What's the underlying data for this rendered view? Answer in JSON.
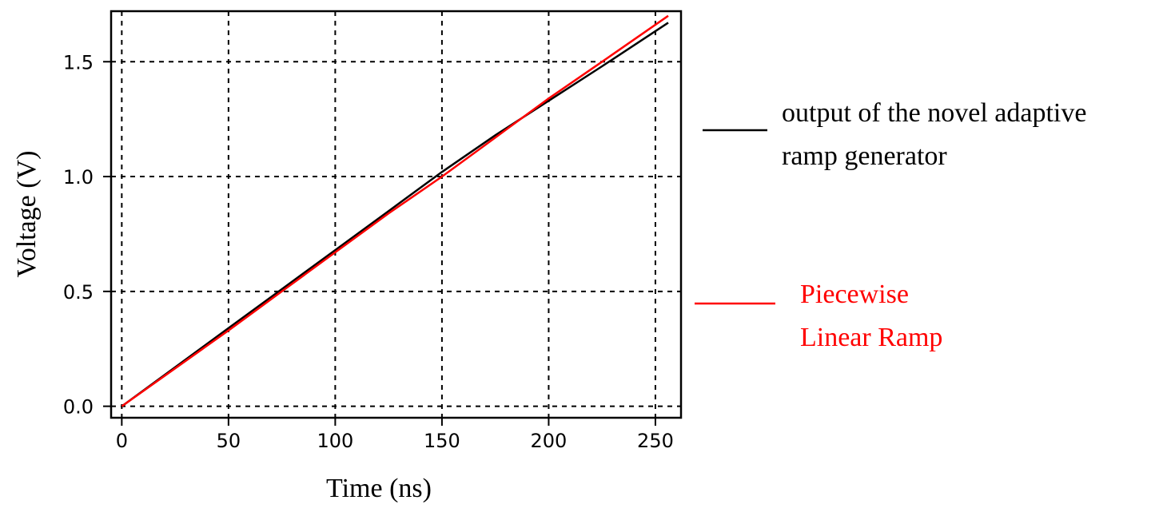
{
  "chart_data": {
    "type": "line",
    "title": "",
    "xlabel": "Time (ns)",
    "ylabel": "Voltage (V)",
    "xlim": [
      -5,
      262
    ],
    "ylim": [
      -0.05,
      1.72
    ],
    "xticks": [
      0,
      50,
      100,
      150,
      200,
      250
    ],
    "xtick_labels": [
      "0",
      "50",
      "100",
      "150",
      "200",
      "250"
    ],
    "yticks": [
      0.0,
      0.5,
      1.0,
      1.5
    ],
    "ytick_labels": [
      "0.0",
      "0.5",
      "1.0",
      "1.5"
    ],
    "grid": true,
    "legend_position": "right",
    "series": [
      {
        "name": "output of the novel adaptive ramp generator",
        "legend_lines": [
          "output of the novel adaptive",
          "ramp generator"
        ],
        "color": "#000000",
        "x": [
          0,
          25,
          50,
          75,
          100,
          125,
          150,
          175,
          200,
          225,
          256
        ],
        "y": [
          0.0,
          0.17,
          0.34,
          0.51,
          0.68,
          0.85,
          1.02,
          1.18,
          1.33,
          1.48,
          1.67
        ]
      },
      {
        "name": "Piecewise Linear Ramp",
        "legend_lines": [
          "Piecewise",
          "Linear Ramp"
        ],
        "color": "#ff0000",
        "x": [
          0,
          25,
          50,
          75,
          100,
          125,
          150,
          175,
          200,
          225,
          256
        ],
        "y": [
          0.0,
          0.165,
          0.33,
          0.5,
          0.67,
          0.84,
          1.0,
          1.17,
          1.34,
          1.5,
          1.7
        ]
      }
    ]
  }
}
